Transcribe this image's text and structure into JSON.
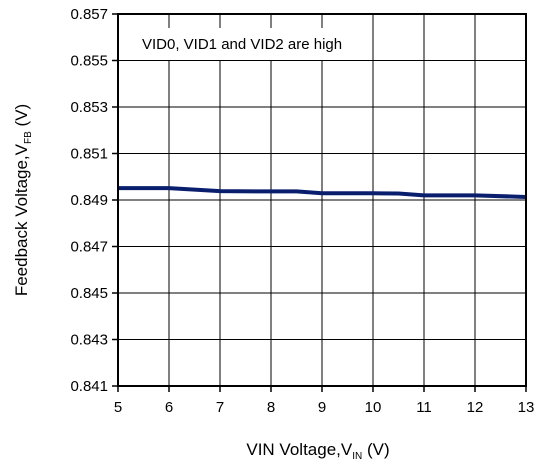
{
  "chart_data": {
    "type": "line",
    "title": "",
    "annotation": "VID0, VID1 and VID2 are high",
    "xlabel": {
      "main": "VIN Voltage,V",
      "sub": "IN",
      "unit": " (V)"
    },
    "ylabel": {
      "main": "Feedback Voltage,V",
      "sub": "FB",
      "unit": " (V)"
    },
    "xlim": [
      5,
      13
    ],
    "ylim": [
      0.841,
      0.857
    ],
    "x_ticks": [
      "5",
      "6",
      "7",
      "8",
      "9",
      "10",
      "11",
      "12",
      "13"
    ],
    "y_ticks": [
      "0.841",
      "0.843",
      "0.845",
      "0.847",
      "0.849",
      "0.851",
      "0.853",
      "0.855",
      "0.857"
    ],
    "grid": true,
    "series": [
      {
        "color": "#0a1e6e",
        "x": [
          5,
          6,
          7,
          8,
          8.5,
          9,
          10,
          10.5,
          11,
          12,
          13
        ],
        "y": [
          0.84951,
          0.84951,
          0.84938,
          0.84937,
          0.84937,
          0.84929,
          0.84929,
          0.84928,
          0.8492,
          0.8492,
          0.84913
        ]
      }
    ]
  }
}
